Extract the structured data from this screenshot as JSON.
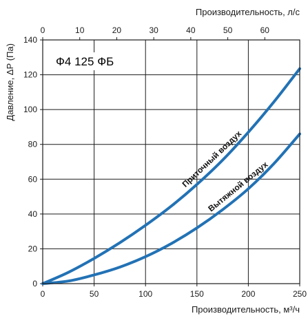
{
  "chart_data": {
    "type": "line",
    "title": "Ф4  125 ФБ",
    "xlabel": "Производительность, м³/ч",
    "ylabel": "Давление, ΔР (Па)",
    "x2label": "Производительность, л/с",
    "xlim": [
      0,
      250
    ],
    "ylim": [
      0,
      140
    ],
    "x2lim": [
      0,
      69.44
    ],
    "x_ticks": [
      0,
      50,
      100,
      150,
      200,
      250
    ],
    "y_ticks": [
      0,
      20,
      40,
      60,
      80,
      100,
      120,
      140
    ],
    "x2_ticks": [
      0,
      10,
      20,
      30,
      40,
      50,
      60
    ],
    "x_tick_labels": [
      "0",
      "50",
      "100",
      "150",
      "200",
      "250"
    ],
    "y_tick_labels": [
      "0",
      "20",
      "40",
      "60",
      "80",
      "100",
      "120",
      "140"
    ],
    "x2_tick_labels": [
      "0",
      "10",
      "20",
      "30",
      "40",
      "50",
      "60"
    ],
    "grid": true,
    "series": [
      {
        "name": "Приточный воздух",
        "color": "#2272b5",
        "x": [
          0,
          25,
          50,
          75,
          100,
          125,
          150,
          175,
          200,
          225,
          250
        ],
        "y": [
          0,
          6.5,
          14.5,
          23.5,
          33.5,
          44.5,
          57,
          71,
          87,
          104.5,
          123.5
        ]
      },
      {
        "name": "Вытяжной воздух",
        "color": "#2272b5",
        "x": [
          0,
          25,
          50,
          75,
          100,
          125,
          150,
          175,
          200,
          225,
          250
        ],
        "y": [
          0,
          1.5,
          5,
          9.5,
          15.5,
          23,
          32,
          42.5,
          54.5,
          69,
          86
        ]
      }
    ]
  }
}
